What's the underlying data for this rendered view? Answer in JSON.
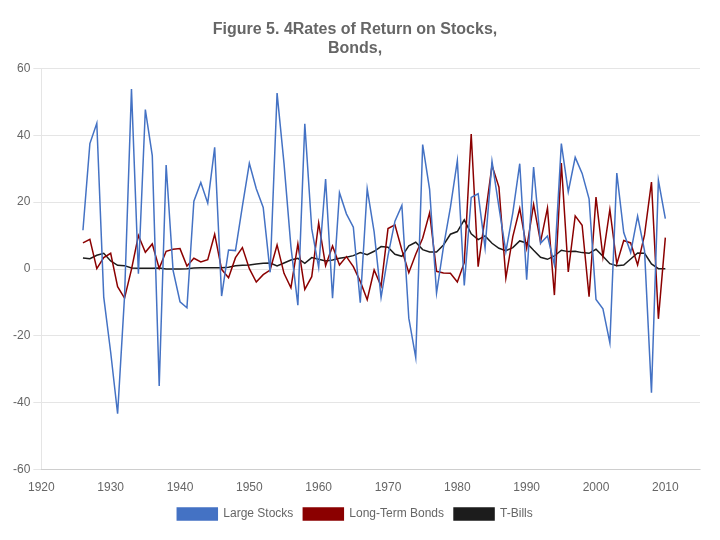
{
  "chart_data": {
    "type": "line",
    "title": [
      "Figure 5. 4Rates of Return on Stocks,",
      "Bonds,"
    ],
    "x": [
      1926,
      1927,
      1928,
      1929,
      1930,
      1931,
      1932,
      1933,
      1934,
      1935,
      1936,
      1937,
      1938,
      1939,
      1940,
      1941,
      1942,
      1943,
      1944,
      1945,
      1946,
      1947,
      1948,
      1949,
      1950,
      1951,
      1952,
      1953,
      1954,
      1955,
      1956,
      1957,
      1958,
      1959,
      1960,
      1961,
      1962,
      1963,
      1964,
      1965,
      1966,
      1967,
      1968,
      1969,
      1970,
      1971,
      1972,
      1973,
      1974,
      1975,
      1976,
      1977,
      1978,
      1979,
      1980,
      1981,
      1982,
      1983,
      1984,
      1985,
      1986,
      1987,
      1988,
      1989,
      1990,
      1991,
      1992,
      1993,
      1994,
      1995,
      1996,
      1997,
      1998,
      1999,
      2000,
      2001,
      2002,
      2003,
      2004,
      2005,
      2006,
      2007,
      2008,
      2009,
      2010
    ],
    "series": [
      {
        "name": "Large Stocks",
        "color": "#4472C4",
        "values": [
          11.6,
          37.5,
          43.6,
          -8.4,
          -24.9,
          -43.3,
          -8.2,
          53.8,
          -1.4,
          47.7,
          33.9,
          -35.0,
          31.1,
          -0.4,
          -9.8,
          -11.6,
          20.3,
          25.9,
          19.7,
          36.4,
          -8.1,
          5.7,
          5.5,
          18.8,
          31.6,
          24.0,
          18.4,
          -1.0,
          52.6,
          31.6,
          6.6,
          -10.8,
          43.4,
          12.0,
          0.5,
          26.9,
          -8.7,
          22.8,
          16.5,
          12.5,
          -10.1,
          24.0,
          11.1,
          -8.5,
          4.0,
          14.3,
          19.0,
          -14.7,
          -26.5,
          37.2,
          23.8,
          -7.2,
          6.6,
          18.4,
          32.4,
          -4.9,
          21.4,
          22.5,
          6.3,
          32.2,
          18.5,
          5.2,
          16.8,
          31.5,
          -3.2,
          30.5,
          7.7,
          9.9,
          1.3,
          37.5,
          23.1,
          33.4,
          28.6,
          21.0,
          -9.1,
          -11.9,
          -22.1,
          28.7,
          10.9,
          4.9,
          15.8,
          5.5,
          -37.0,
          26.5,
          15.1
        ]
      },
      {
        "name": "Long-Term Bonds",
        "color": "#8B0000",
        "values": [
          7.8,
          8.9,
          0.1,
          3.4,
          4.7,
          -5.3,
          -8.7,
          -0.1,
          10.0,
          5.0,
          7.5,
          0.2,
          5.3,
          5.9,
          6.1,
          0.9,
          3.2,
          2.1,
          2.8,
          10.4,
          -0.1,
          -2.6,
          3.4,
          6.4,
          0.1,
          -3.9,
          -1.7,
          -0.3,
          7.2,
          -1.3,
          -5.6,
          7.5,
          -6.1,
          -2.3,
          13.8,
          1.0,
          6.9,
          1.2,
          3.7,
          0.7,
          -3.7,
          -9.2,
          -0.3,
          -5.1,
          12.1,
          13.2,
          5.7,
          -1.1,
          4.4,
          9.2,
          16.8,
          -0.7,
          -1.2,
          -1.3,
          -3.9,
          1.9,
          40.4,
          0.7,
          15.5,
          31.0,
          24.5,
          -2.7,
          9.7,
          18.1,
          6.2,
          19.3,
          8.1,
          18.2,
          -7.8,
          31.7,
          -0.9,
          15.9,
          13.1,
          -8.3,
          21.5,
          3.6,
          17.8,
          1.5,
          8.5,
          7.8,
          1.2,
          10.2,
          26.0,
          -14.9,
          9.4
        ]
      },
      {
        "name": "T-Bills",
        "color": "#1C1C1C",
        "values": [
          3.3,
          3.1,
          4.1,
          4.7,
          2.4,
          1.1,
          1.0,
          0.3,
          0.2,
          0.2,
          0.2,
          0.3,
          0.0,
          0.0,
          0.0,
          0.1,
          0.3,
          0.4,
          0.4,
          0.4,
          0.4,
          0.5,
          1.0,
          1.1,
          1.2,
          1.5,
          1.7,
          1.8,
          0.9,
          1.8,
          2.7,
          3.2,
          1.7,
          3.4,
          2.9,
          2.4,
          2.7,
          3.2,
          3.5,
          4.0,
          4.9,
          4.3,
          5.3,
          6.7,
          6.5,
          4.4,
          3.8,
          6.9,
          8.0,
          5.8,
          5.1,
          5.1,
          7.2,
          10.4,
          11.2,
          14.7,
          10.5,
          8.8,
          9.9,
          7.7,
          6.2,
          5.5,
          6.4,
          8.4,
          7.8,
          5.6,
          3.5,
          2.9,
          3.9,
          5.6,
          5.2,
          5.3,
          4.9,
          4.7,
          5.9,
          3.8,
          1.6,
          1.0,
          1.2,
          3.0,
          4.8,
          4.7,
          1.5,
          0.1,
          0.1
        ]
      }
    ],
    "xlim": [
      1920,
      2015
    ],
    "xticks": [
      1920,
      1930,
      1940,
      1950,
      1960,
      1970,
      1980,
      1990,
      2000,
      2010
    ],
    "ylim": [
      -60,
      60
    ],
    "yticks": [
      -60,
      -40,
      -20,
      0,
      20,
      40,
      60
    ],
    "grid": "y",
    "legend": "bottom"
  }
}
